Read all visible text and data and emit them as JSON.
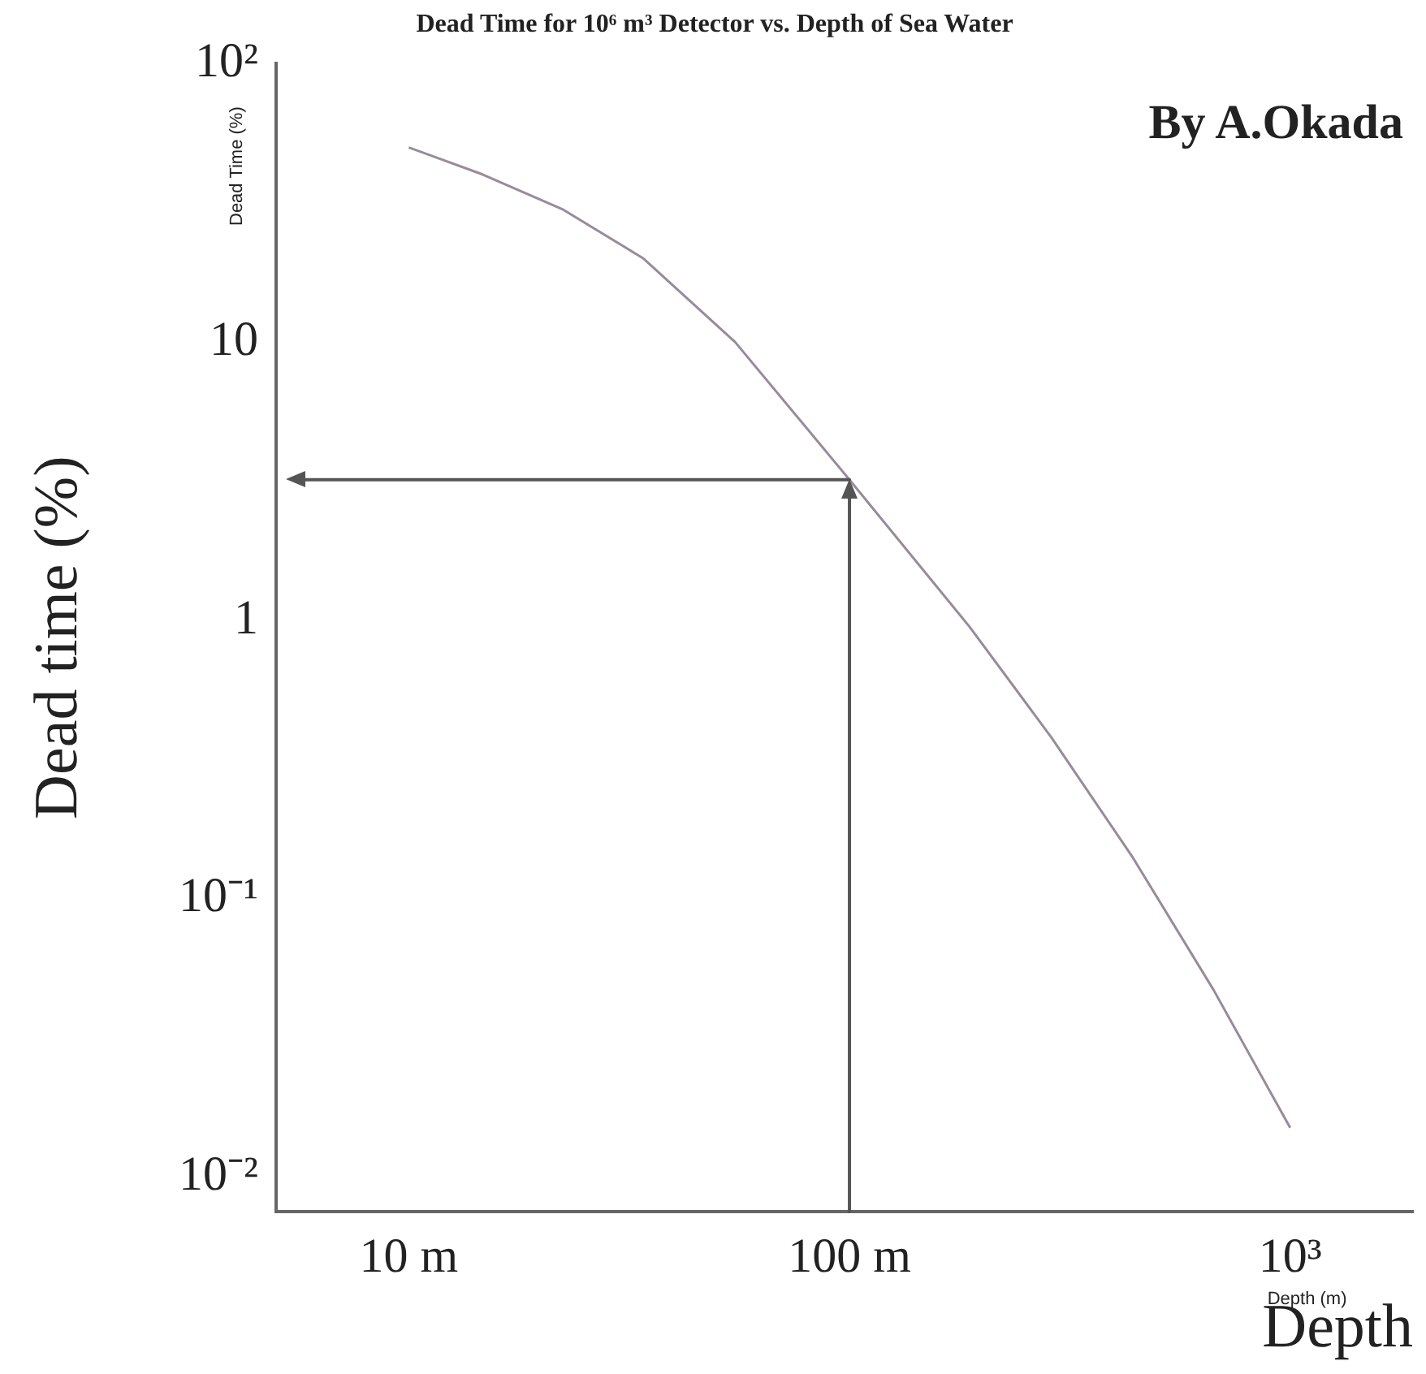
{
  "chart_data": {
    "type": "line",
    "title": "Dead Time for 10⁶ m³ Detector vs. Depth of Sea Water",
    "xlabel": "Depth",
    "ylabel": "Dead time (%)",
    "annotations": [
      "By A.Okada",
      "Dead Time (%)",
      "Depth (m)"
    ],
    "log": "xy",
    "grid": false,
    "legend": false,
    "marker": "none",
    "line_style": "solid",
    "xlim": [
      5,
      1900
    ],
    "ylim": [
      0.0075,
      100
    ],
    "xticks": [
      {
        "value": 10,
        "label": "10 m"
      },
      {
        "value": 100,
        "label": "100 m"
      },
      {
        "value": 1000,
        "label": "10³"
      }
    ],
    "yticks": [
      {
        "value": 100,
        "label": "10²"
      },
      10,
      1,
      {
        "value": 0.1,
        "label": "10⁻¹"
      },
      {
        "value": 0.01,
        "label": "10⁻²"
      }
    ],
    "ref_lines": [
      {
        "axis": "x",
        "value": 100,
        "color": "#555555"
      },
      {
        "axis": "y",
        "value": 3.2,
        "color": "#555555"
      }
    ],
    "series": [
      {
        "color": "#9a8a9a",
        "x": [
          10,
          14.7,
          22.3,
          34,
          55,
          100,
          187,
          287,
          440,
          670,
          1000
        ],
        "values": [
          50,
          40,
          30,
          20,
          10,
          3.2,
          0.95,
          0.38,
          0.14,
          0.047,
          0.015
        ]
      }
    ]
  }
}
